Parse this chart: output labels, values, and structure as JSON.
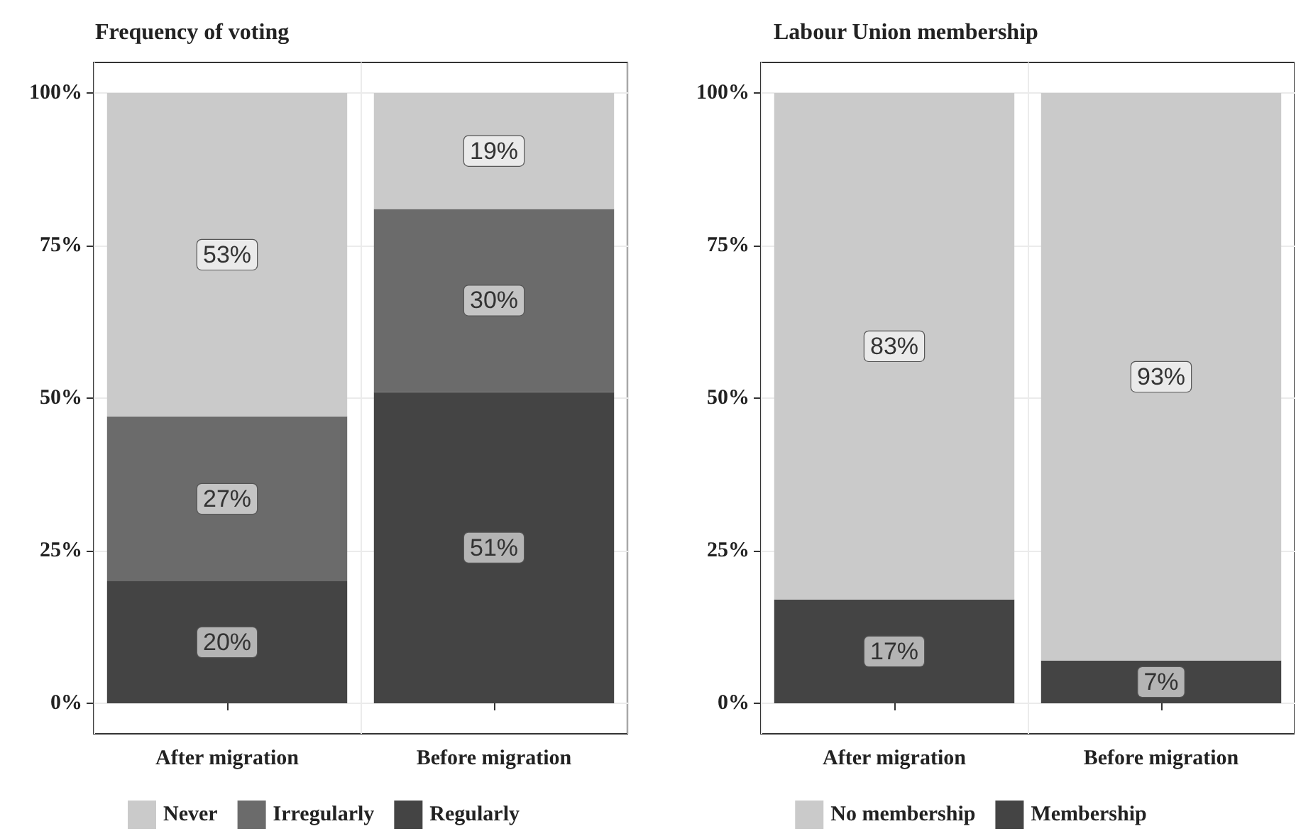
{
  "chart_data": [
    {
      "type": "bar",
      "title": "Frequency of voting",
      "stacked": true,
      "categories": [
        "After migration",
        "Before migration"
      ],
      "series": [
        {
          "name": "Regularly",
          "color": "#444444",
          "values": [
            20,
            51
          ],
          "value_labels": [
            "20%",
            "51%"
          ]
        },
        {
          "name": "Irregularly",
          "color": "#6b6b6b",
          "values": [
            27,
            30
          ],
          "value_labels": [
            "27%",
            "30%"
          ]
        },
        {
          "name": "Never",
          "color": "#cacaca",
          "values": [
            53,
            19
          ],
          "value_labels": [
            "53%",
            "19%"
          ]
        }
      ],
      "ylim": [
        -5,
        105
      ],
      "yticks": [
        {
          "value": 0,
          "label": "0%"
        },
        {
          "value": 25,
          "label": "25%"
        },
        {
          "value": 50,
          "label": "50%"
        },
        {
          "value": 75,
          "label": "75%"
        },
        {
          "value": 100,
          "label": "100%"
        }
      ],
      "grid": true,
      "legend": "bottom"
    },
    {
      "type": "bar",
      "title": "Labour Union membership",
      "stacked": true,
      "categories": [
        "After migration",
        "Before migration"
      ],
      "series": [
        {
          "name": "Membership",
          "color": "#444444",
          "values": [
            17,
            7
          ],
          "value_labels": [
            "17%",
            "7%"
          ]
        },
        {
          "name": "No membership",
          "color": "#cacaca",
          "values": [
            83,
            93
          ],
          "value_labels": [
            "83%",
            "93%"
          ]
        }
      ],
      "ylim": [
        -5,
        105
      ],
      "yticks": [
        {
          "value": 0,
          "label": "0%"
        },
        {
          "value": 25,
          "label": "25%"
        },
        {
          "value": 50,
          "label": "50%"
        },
        {
          "value": 75,
          "label": "75%"
        },
        {
          "value": 100,
          "label": "100%"
        }
      ],
      "grid": true,
      "legend": "bottom"
    }
  ]
}
